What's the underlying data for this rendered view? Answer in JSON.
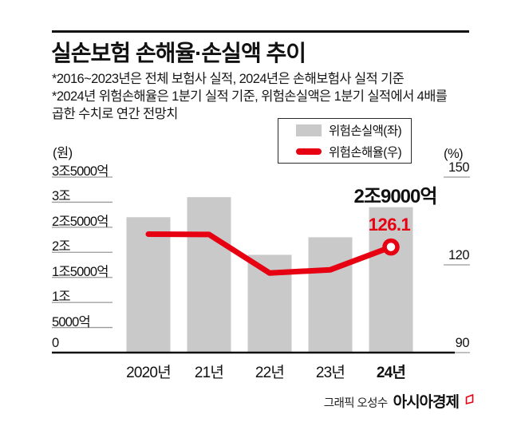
{
  "header": {
    "title": "실손보험 손해율·손실액 추이",
    "notes": [
      "*2016~2023년은 전체 보험사 실적, 2024년은 손해보험사 실적 기준",
      "*2024년 위험손해율은 1분기 실적 기준, 위험손실액은 1분기 실적에서 4배를",
      "곱한 수치로 연간 전망치"
    ]
  },
  "legend": {
    "items": [
      {
        "label": "위험손실액(좌)",
        "type": "bar",
        "color": "#c9c9c9"
      },
      {
        "label": "위험손해율(우)",
        "type": "line",
        "color": "#e60012"
      }
    ]
  },
  "chart_data": {
    "type": "bar+line",
    "categories": [
      "2020년",
      "21년",
      "22년",
      "23년",
      "24년"
    ],
    "series": [
      {
        "name": "위험손실액(좌)",
        "type": "bar",
        "axis": "left",
        "unit": "억원",
        "values": [
          27000,
          31000,
          19500,
          23000,
          29000
        ],
        "color": "#c9c9c9"
      },
      {
        "name": "위험손해율(우)",
        "type": "line",
        "axis": "right",
        "unit": "%",
        "values": [
          130.5,
          130.4,
          117.2,
          118.3,
          126.1
        ],
        "color": "#e60012",
        "last_point_marker": "open-circle"
      }
    ],
    "left_axis": {
      "unit_label": "(원)",
      "range": [
        0,
        35000
      ],
      "ticks": [
        {
          "v": 35000,
          "label": "3조5000억"
        },
        {
          "v": 30000,
          "label": "3조"
        },
        {
          "v": 25000,
          "label": "2조5000억"
        },
        {
          "v": 20000,
          "label": "2조"
        },
        {
          "v": 15000,
          "label": "1조5000억"
        },
        {
          "v": 10000,
          "label": "1조"
        },
        {
          "v": 5000,
          "label": "5000억"
        },
        {
          "v": 0,
          "label": "0"
        }
      ]
    },
    "right_axis": {
      "unit_label": "(%)",
      "range": [
        90,
        150
      ],
      "ticks": [
        {
          "v": 150,
          "label": "150"
        },
        {
          "v": 120,
          "label": "120"
        },
        {
          "v": 90,
          "label": "90"
        }
      ]
    },
    "annotations": {
      "bar_label": "2조9000억",
      "line_label": "126.1"
    },
    "grid": false,
    "legend_position": "top-right"
  },
  "footer": {
    "credit_prefix": "그래픽 오성수",
    "brand": "아시아경제"
  },
  "colors": {
    "bar": "#c9c9c9",
    "line": "#e60012",
    "axis": "#111111",
    "tick_line": "#9a9a9a",
    "text": "#111111"
  }
}
